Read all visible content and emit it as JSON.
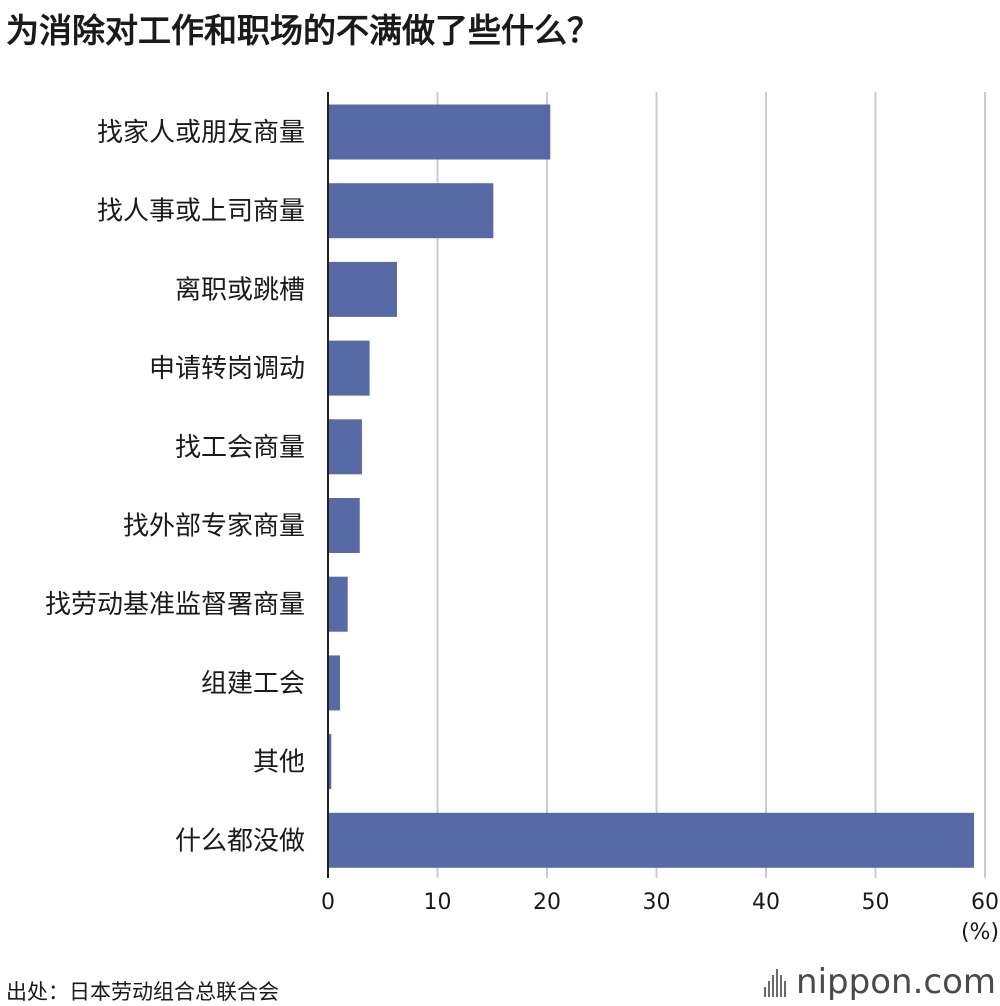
{
  "title": "为消除对工作和职场的不满做了些什么？",
  "source": "出处：日本劳动组合总联合会",
  "brand": {
    "name": "nippon",
    "dot": ".",
    "tld": "com"
  },
  "colors": {
    "bar": "#576aa6",
    "grid": "#cccccc",
    "axis": "#222222",
    "text": "#1a1a1a"
  },
  "chart_data": {
    "type": "bar",
    "orientation": "horizontal",
    "categories": [
      "找家人或朋友商量",
      "找人事或上司商量",
      "离职或跳槽",
      "申请转岗调动",
      "找工会商量",
      "找外部专家商量",
      "找劳动基准监督署商量",
      "组建工会",
      "其他",
      "什么都没做"
    ],
    "values": [
      20.3,
      15.1,
      6.3,
      3.8,
      3.1,
      2.9,
      1.8,
      1.1,
      0.3,
      59.0
    ],
    "xlim": [
      0,
      60
    ],
    "xticks": [
      0,
      10,
      20,
      30,
      40,
      50,
      60
    ],
    "unit": "(%)",
    "grid": true
  }
}
